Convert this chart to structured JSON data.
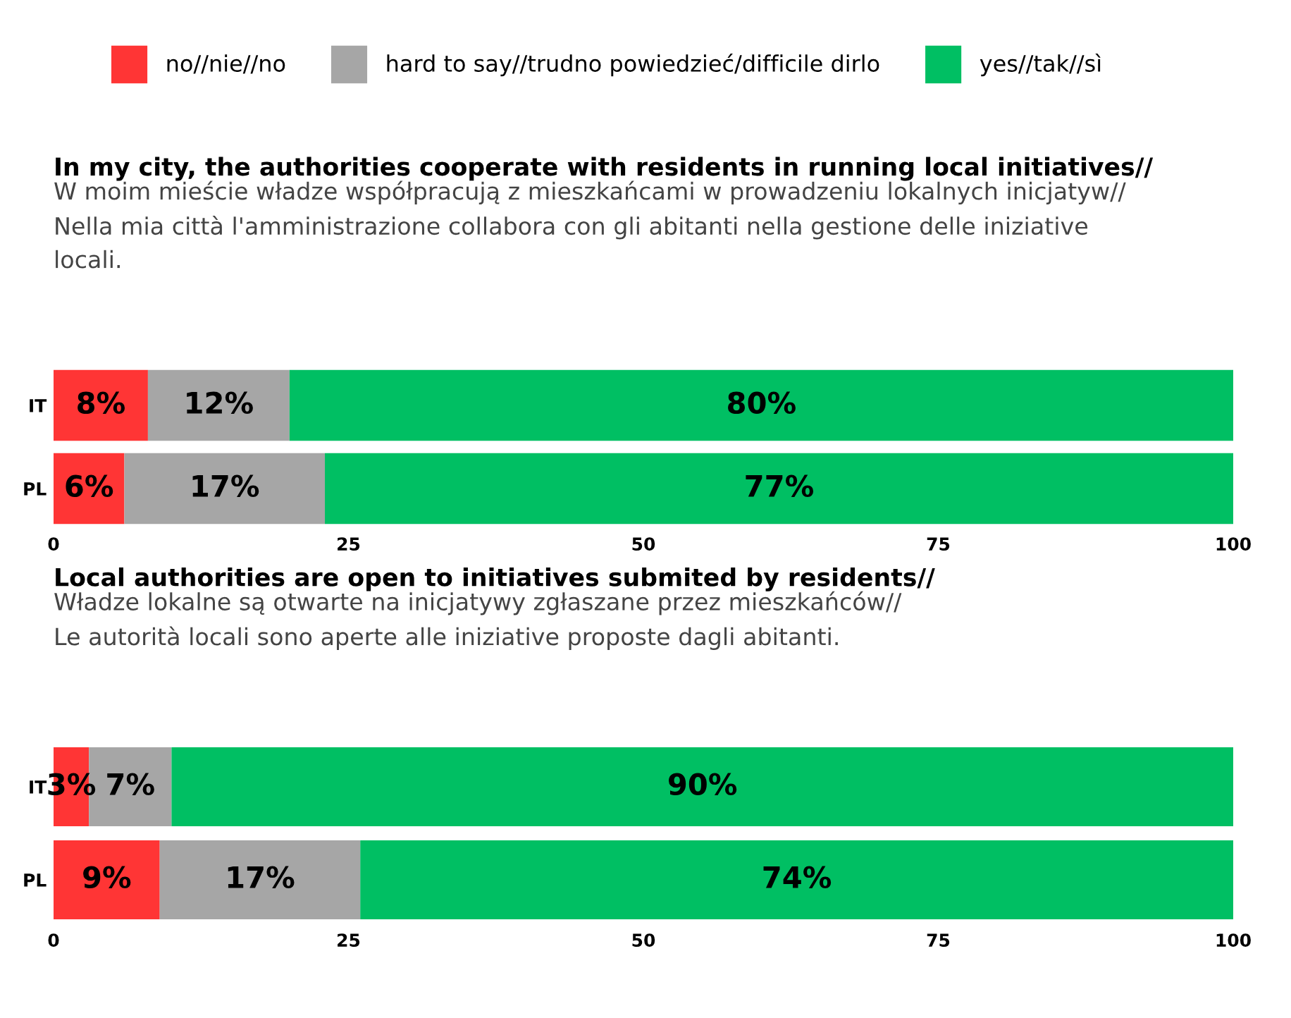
{
  "chart_data": [
    {
      "type": "bar",
      "orientation": "horizontal",
      "stacked": true,
      "title": "In my city, the authorities cooperate with residents in running local initiatives//",
      "subtitle": "W moim mieście władze współpracują z mieszkańcami w prowadzeniu lokalnych inicjatyw//\nNella mia città l'amministrazione collabora con gli abitanti nella gestione delle iniziative\nlocali.",
      "categories": [
        "IT",
        "PL"
      ],
      "series": [
        {
          "name": "no//nie//no",
          "color": "#ff3535",
          "values": [
            8,
            6
          ],
          "value_labels": [
            "8%",
            "6%"
          ]
        },
        {
          "name": "hard to say//trudno powiedzieć/difficile dirlo",
          "color": "#a6a6a6",
          "values": [
            12,
            17
          ],
          "value_labels": [
            "12%",
            "17%"
          ]
        },
        {
          "name": "yes//tak//sì",
          "color": "#00bf63",
          "values": [
            80,
            77
          ],
          "value_labels": [
            "80%",
            "77%"
          ]
        }
      ],
      "xlim": [
        0,
        100
      ],
      "xticks": [
        0,
        25,
        50,
        75,
        100
      ],
      "legend": "top",
      "grid": false
    },
    {
      "type": "bar",
      "orientation": "horizontal",
      "stacked": true,
      "title": "Local authorities are open to initiatives submited by residents//",
      "subtitle": "Władze lokalne są otwarte na inicjatywy zgłaszane przez mieszkańców//\nLe autorità locali sono aperte alle iniziative proposte dagli abitanti.",
      "categories": [
        "IT",
        "PL"
      ],
      "series": [
        {
          "color": "#ff3535",
          "values": [
            3,
            9
          ],
          "value_labels": [
            "3%",
            "9%"
          ]
        },
        {
          "color": "#a6a6a6",
          "values": [
            7,
            17
          ],
          "value_labels": [
            "7%",
            "17%"
          ]
        },
        {
          "color": "#00bf63",
          "values": [
            90,
            74
          ],
          "value_labels": [
            "90%",
            "74%"
          ]
        }
      ],
      "xlim": [
        0,
        100
      ],
      "xticks": [
        0,
        25,
        50,
        75,
        100
      ],
      "grid": false
    }
  ]
}
